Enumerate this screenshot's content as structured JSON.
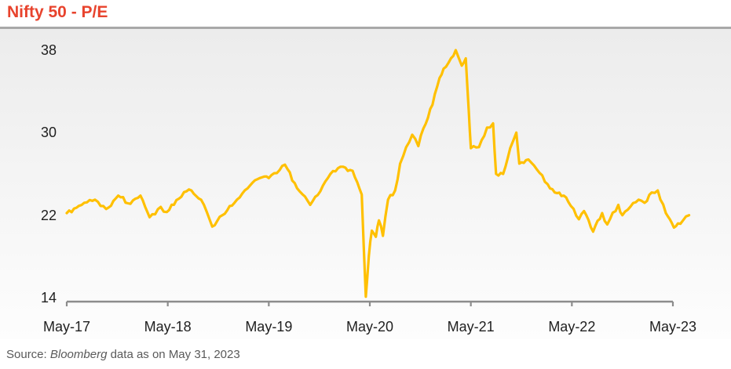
{
  "header": {
    "title": "Nifty 50 - P/E"
  },
  "source": {
    "prefix": "Source: ",
    "publisher": "Bloomberg",
    "suffix": " data as on May 31, 2023"
  },
  "colors": {
    "title": "#e8432d",
    "line": "#ffc000",
    "axis": "#8c8c8c",
    "separator": "#a8a8a8",
    "tick_label": "#1f1f1f",
    "source_text": "#595959",
    "panel_top": "#ececec",
    "panel_bottom": "#fdfdfd"
  },
  "chart_data": {
    "type": "line",
    "title": "Nifty 50 - P/E",
    "xlabel": "",
    "ylabel": "",
    "legend": "none",
    "grid": false,
    "ylim": [
      14,
      38
    ],
    "y_tick_values": [
      38,
      30,
      22,
      14
    ],
    "x_tick_labels": [
      "May-17",
      "May-18",
      "May-19",
      "May-20",
      "May-21",
      "May-22",
      "May-23"
    ],
    "x_unit": "years since May-2017",
    "series": [
      {
        "name": "Nifty 50 P/E",
        "color": "#ffc000",
        "points": [
          [
            0.0,
            22.2
          ],
          [
            0.12,
            22.9
          ],
          [
            0.28,
            23.5
          ],
          [
            0.39,
            22.6
          ],
          [
            0.51,
            23.9
          ],
          [
            0.63,
            23.1
          ],
          [
            0.73,
            23.9
          ],
          [
            0.82,
            21.8
          ],
          [
            0.93,
            22.8
          ],
          [
            0.99,
            22.3
          ],
          [
            1.11,
            23.6
          ],
          [
            1.21,
            24.5
          ],
          [
            1.33,
            23.5
          ],
          [
            1.44,
            20.9
          ],
          [
            1.54,
            22.0
          ],
          [
            1.66,
            23.2
          ],
          [
            1.79,
            24.6
          ],
          [
            1.91,
            25.6
          ],
          [
            2.0,
            25.6
          ],
          [
            2.16,
            26.9
          ],
          [
            2.28,
            24.6
          ],
          [
            2.41,
            23.0
          ],
          [
            2.61,
            26.0
          ],
          [
            2.71,
            26.7
          ],
          [
            2.83,
            26.3
          ],
          [
            2.92,
            24.0
          ],
          [
            2.96,
            14.1
          ],
          [
            2.99,
            18.0
          ],
          [
            3.02,
            20.5
          ],
          [
            3.06,
            19.9
          ],
          [
            3.09,
            21.5
          ],
          [
            3.13,
            20.0
          ],
          [
            3.18,
            23.5
          ],
          [
            3.25,
            24.4
          ],
          [
            3.3,
            27.0
          ],
          [
            3.36,
            28.6
          ],
          [
            3.42,
            29.8
          ],
          [
            3.48,
            28.7
          ],
          [
            3.53,
            30.4
          ],
          [
            3.62,
            32.7
          ],
          [
            3.69,
            35.3
          ],
          [
            3.73,
            36.2
          ],
          [
            3.78,
            36.8
          ],
          [
            3.85,
            38.0
          ],
          [
            3.91,
            36.5
          ],
          [
            3.95,
            37.2
          ],
          [
            3.98,
            32.0
          ],
          [
            4.0,
            28.5
          ],
          [
            4.08,
            28.6
          ],
          [
            4.16,
            30.5
          ],
          [
            4.22,
            30.9
          ],
          [
            4.25,
            26.0
          ],
          [
            4.32,
            26.0
          ],
          [
            4.39,
            28.5
          ],
          [
            4.45,
            30.0
          ],
          [
            4.48,
            27.0
          ],
          [
            4.57,
            27.4
          ],
          [
            4.68,
            26.1
          ],
          [
            4.76,
            25.0
          ],
          [
            4.83,
            24.2
          ],
          [
            4.92,
            23.9
          ],
          [
            4.99,
            22.9
          ],
          [
            5.07,
            21.6
          ],
          [
            5.12,
            22.4
          ],
          [
            5.21,
            20.4
          ],
          [
            5.3,
            22.2
          ],
          [
            5.35,
            21.1
          ],
          [
            5.46,
            23.0
          ],
          [
            5.5,
            22.0
          ],
          [
            5.66,
            23.5
          ],
          [
            5.72,
            23.2
          ],
          [
            5.79,
            24.2
          ],
          [
            5.85,
            24.4
          ],
          [
            5.93,
            22.2
          ],
          [
            5.97,
            21.6
          ],
          [
            6.01,
            20.8
          ],
          [
            6.05,
            21.2
          ],
          [
            6.1,
            21.5
          ],
          [
            6.16,
            22.0
          ]
        ]
      }
    ]
  }
}
